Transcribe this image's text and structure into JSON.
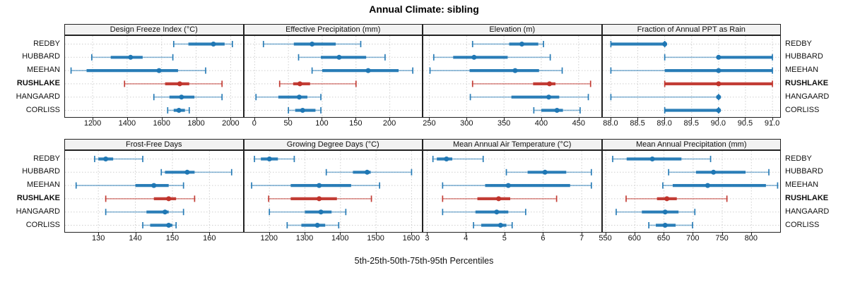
{
  "title": "Annual Climate: sibling",
  "caption": "5th-25th-50th-75th-95th Percentiles",
  "sites": [
    "REDBY",
    "HUBBARD",
    "MEEHAN",
    "RUSHLAKE",
    "HANGAARD",
    "CORLISS"
  ],
  "highlight_site": "RUSHLAKE",
  "percentile_labels": [
    "5th",
    "25th",
    "50th",
    "75th",
    "95th"
  ],
  "colors": {
    "normal": "#1f77b4",
    "highlight": "#c0332b",
    "grid": "#cfcfcf",
    "strip_bg": "#f2f2f2",
    "border": "#222222"
  },
  "chart_data": {
    "type": "dotplot-percentile-trellis",
    "legend_position": "none",
    "grid": "dashed",
    "rows": [
      {
        "panels": [
          {
            "title": "Design Freeze Index (°C)",
            "range": [
              1040,
              2070
            ],
            "ticks": [
              1200,
              1400,
              1600,
              1800,
              2000
            ],
            "tick_labels": [
              "1200",
              "1400",
              "1600",
              "1800",
              "2000"
            ],
            "values": {
              "REDBY": [
                1670,
                1755,
                1900,
                1965,
                2010
              ],
              "HUBBARD": [
                1195,
                1305,
                1420,
                1490,
                1665
              ],
              "MEEHAN": [
                1075,
                1165,
                1585,
                1695,
                1855
              ],
              "RUSHLAKE": [
                1385,
                1620,
                1705,
                1760,
                1950
              ],
              "HANGAARD": [
                1555,
                1645,
                1715,
                1790,
                1950
              ],
              "CORLISS": [
                1635,
                1670,
                1700,
                1735,
                1760
              ]
            }
          },
          {
            "title": "Effective Precipitation (mm)",
            "range": [
              -15,
              248
            ],
            "ticks": [
              0,
              50,
              100,
              150,
              200
            ],
            "tick_labels": [
              "0",
              "50",
              "100",
              "150",
              "200"
            ],
            "values": {
              "REDBY": [
                13,
                58,
                85,
                120,
                157
              ],
              "HUBBARD": [
                65,
                98,
                125,
                165,
                193
              ],
              "MEEHAN": [
                85,
                100,
                168,
                213,
                234
              ],
              "RUSHLAKE": [
                37,
                57,
                67,
                82,
                150
              ],
              "HANGAARD": [
                2,
                35,
                66,
                78,
                98
              ],
              "CORLISS": [
                50,
                60,
                71,
                90,
                98
              ]
            }
          },
          {
            "title": "Elevation (m)",
            "range": [
              242,
              480
            ],
            "ticks": [
              250,
              300,
              350,
              400,
              450
            ],
            "tick_labels": [
              "250",
              "300",
              "350",
              "400",
              "450"
            ],
            "values": {
              "REDBY": [
                308,
                357,
                374,
                396,
                403
              ],
              "HUBBARD": [
                256,
                282,
                310,
                355,
                412
              ],
              "MEEHAN": [
                251,
                304,
                365,
                397,
                428
              ],
              "RUSHLAKE": [
                308,
                389,
                411,
                419,
                466
              ],
              "HANGAARD": [
                305,
                360,
                410,
                424,
                463
              ],
              "CORLISS": [
                390,
                400,
                421,
                429,
                452
              ]
            }
          },
          {
            "title": "Fraction of Annual PPT as Rain",
            "range": [
              87.85,
              91.15
            ],
            "ticks": [
              88.0,
              88.5,
              89.0,
              89.5,
              90.0,
              90.5,
              91.0
            ],
            "tick_labels": [
              "88.0",
              "88.5",
              "89.0",
              "89.5",
              "90.0",
              "90.5",
              "91.0"
            ],
            "values": {
              "REDBY": [
                88,
                88,
                89,
                89,
                89
              ],
              "HUBBARD": [
                89,
                90,
                90,
                91,
                91
              ],
              "MEEHAN": [
                88,
                89,
                90,
                91,
                91
              ],
              "RUSHLAKE": [
                89,
                89,
                90,
                91,
                91
              ],
              "HANGAARD": [
                88,
                90,
                90,
                90,
                90
              ],
              "CORLISS": [
                89,
                89,
                90,
                90,
                90
              ]
            }
          }
        ]
      },
      {
        "panels": [
          {
            "title": "Frost-Free Days",
            "range": [
              121,
              169
            ],
            "ticks": [
              130,
              140,
              150,
              160
            ],
            "tick_labels": [
              "130",
              "140",
              "150",
              "160"
            ],
            "values": {
              "REDBY": [
                129,
                130,
                132,
                134,
                142
              ],
              "HUBBARD": [
                147,
                148,
                154,
                156,
                166
              ],
              "MEEHAN": [
                124,
                140,
                145,
                149,
                153
              ],
              "RUSHLAKE": [
                132,
                145,
                149,
                151,
                156
              ],
              "HANGAARD": [
                132,
                143,
                148,
                149,
                153
              ],
              "CORLISS": [
                142,
                144,
                149,
                150,
                151
              ]
            }
          },
          {
            "title": "Growing Degree Days (°C)",
            "range": [
              1130,
              1630
            ],
            "ticks": [
              1200,
              1300,
              1400,
              1500,
              1600
            ],
            "tick_labels": [
              "1200",
              "1300",
              "1400",
              "1500",
              "1600"
            ],
            "values": {
              "REDBY": [
                1158,
                1176,
                1200,
                1224,
                1270
              ],
              "HUBBARD": [
                1360,
                1435,
                1475,
                1485,
                1600
              ],
              "MEEHAN": [
                1150,
                1260,
                1340,
                1430,
                1510
              ],
              "RUSHLAKE": [
                1198,
                1260,
                1340,
                1390,
                1487
              ],
              "HANGAARD": [
                1200,
                1300,
                1345,
                1375,
                1415
              ],
              "CORLISS": [
                1250,
                1290,
                1335,
                1357,
                1395
              ]
            }
          },
          {
            "title": "Mean Annual Air Temperature (°C)",
            "range": [
              2.9,
              7.5
            ],
            "ticks": [
              3,
              4,
              5,
              6,
              7
            ],
            "tick_labels": [
              "3",
              "4",
              "5",
              "6",
              "7"
            ],
            "values": {
              "REDBY": [
                3.15,
                3.25,
                3.5,
                3.65,
                4.45
              ],
              "HUBBARD": [
                5.05,
                5.6,
                6.05,
                6.6,
                7.25
              ],
              "MEEHAN": [
                3.4,
                4.5,
                5.1,
                6.7,
                7.25
              ],
              "RUSHLAKE": [
                3.4,
                4.3,
                4.85,
                5.15,
                6.35
              ],
              "HANGAARD": [
                3.4,
                4.25,
                4.8,
                5.1,
                5.55
              ],
              "CORLISS": [
                4.2,
                4.4,
                4.9,
                5.05,
                5.2
              ]
            }
          },
          {
            "title": "Mean Annual Precipitation (mm)",
            "range": [
              545,
              850
            ],
            "ticks": [
              550,
              600,
              650,
              700,
              750,
              800
            ],
            "tick_labels": [
              "550",
              "600",
              "650",
              "700",
              "750",
              "800"
            ],
            "values": {
              "REDBY": [
                562,
                586,
                630,
                680,
                730
              ],
              "HUBBARD": [
                658,
                705,
                735,
                790,
                830
              ],
              "MEEHAN": [
                648,
                665,
                725,
                825,
                845
              ],
              "RUSHLAKE": [
                585,
                638,
                655,
                672,
                758
              ],
              "HANGAARD": [
                568,
                612,
                652,
                675,
                703
              ],
              "CORLISS": [
                624,
                636,
                652,
                670,
                699
              ]
            }
          }
        ]
      }
    ]
  }
}
